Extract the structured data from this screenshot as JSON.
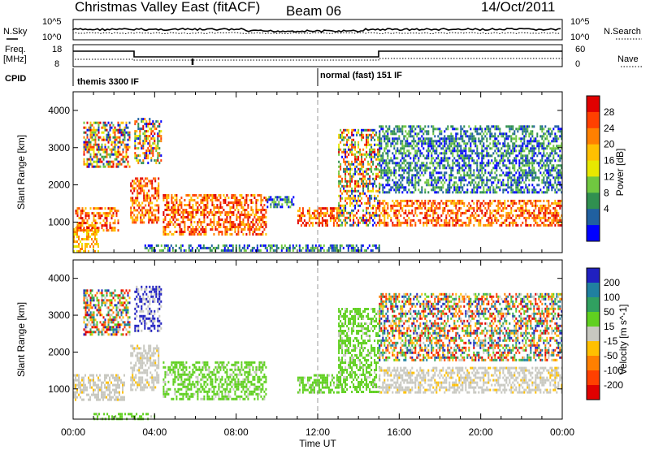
{
  "title": {
    "site": "Christmas Valley East (fitACF)",
    "beam": "Beam 06",
    "date": "14/Oct/2011"
  },
  "time_axis": {
    "label": "Time UT",
    "ticks": [
      "00:00",
      "04:00",
      "08:00",
      "12:00",
      "16:00",
      "20:00",
      "00:00"
    ]
  },
  "noise_panel": {
    "left_label": "N.Sky",
    "right_label": "N.Search",
    "scale_ticks": [
      "10^5",
      "10^0"
    ]
  },
  "freq_panel": {
    "left_label_1": "Freq.",
    "left_label_2": "[MHz]",
    "left_ticks": [
      "18",
      "8"
    ],
    "right_label": "Nave",
    "right_ticks": [
      "60",
      "0"
    ]
  },
  "cpid": {
    "label": "CPID",
    "modes": [
      {
        "name": "themis 3300 IF",
        "start_hour": 0
      },
      {
        "name": "normal (fast) 151 IF",
        "start_hour": 12
      }
    ]
  },
  "chart_data": [
    {
      "type": "heatmap",
      "name": "power",
      "ylabel": "Slant Range [km]",
      "yticks": [
        1000,
        2000,
        3000,
        4000
      ],
      "ylim": [
        180,
        4500
      ],
      "xlim": [
        0,
        24
      ],
      "colorbar": {
        "label": "Power [dB]",
        "ticks": [
          "28",
          "24",
          "20",
          "16",
          "12",
          "8",
          "4"
        ],
        "colors": [
          "#e00000",
          "#ff4000",
          "#ff8000",
          "#ffc000",
          "#e8e800",
          "#70c840",
          "#309050",
          "#2060a0",
          "#0000ff"
        ]
      },
      "regions": [
        {
          "x0": 0.0,
          "x1": 1.2,
          "y0": 200,
          "y1": 900,
          "level": "mid"
        },
        {
          "x0": 0.1,
          "x1": 2.2,
          "y0": 800,
          "y1": 1400,
          "level": "high"
        },
        {
          "x0": 0.5,
          "x1": 2.8,
          "y0": 2500,
          "y1": 3700,
          "level": "mixed"
        },
        {
          "x0": 2.8,
          "x1": 4.2,
          "y0": 1000,
          "y1": 2200,
          "level": "high"
        },
        {
          "x0": 3.0,
          "x1": 4.3,
          "y0": 2600,
          "y1": 3800,
          "level": "mixed"
        },
        {
          "x0": 4.4,
          "x1": 9.5,
          "y0": 700,
          "y1": 1750,
          "level": "high"
        },
        {
          "x0": 9.5,
          "x1": 10.8,
          "y0": 1400,
          "y1": 1700,
          "level": "low"
        },
        {
          "x0": 11.0,
          "x1": 13.0,
          "y0": 900,
          "y1": 1400,
          "level": "high"
        },
        {
          "x0": 13.0,
          "x1": 15.0,
          "y0": 900,
          "y1": 3500,
          "level": "mixed"
        },
        {
          "x0": 15.0,
          "x1": 24.0,
          "y0": 900,
          "y1": 1600,
          "level": "high"
        },
        {
          "x0": 15.0,
          "x1": 24.0,
          "y0": 1800,
          "y1": 3600,
          "level": "low"
        },
        {
          "x0": 3.5,
          "x1": 15.0,
          "y0": 250,
          "y1": 400,
          "level": "low"
        }
      ]
    },
    {
      "type": "heatmap",
      "name": "velocity",
      "ylabel": "Slant Range [km]",
      "yticks": [
        1000,
        2000,
        3000,
        4000
      ],
      "ylim": [
        180,
        4500
      ],
      "xlim": [
        0,
        24
      ],
      "colorbar": {
        "label": "Velocity [m s^-1]",
        "ticks": [
          "200",
          "100",
          "50",
          "15",
          "-15",
          "-50",
          "-100",
          "-200"
        ],
        "colors": [
          "#2020c0",
          "#2080a0",
          "#30a060",
          "#60d020",
          "#c8c8c0",
          "#ffc000",
          "#ff8000",
          "#ff4000",
          "#e00000"
        ]
      },
      "regions": [
        {
          "x0": 0.0,
          "x1": 2.5,
          "y0": 700,
          "y1": 1400,
          "level": "gray"
        },
        {
          "x0": 0.5,
          "x1": 2.8,
          "y0": 2500,
          "y1": 3700,
          "level": "mixed"
        },
        {
          "x0": 3.0,
          "x1": 4.3,
          "y0": 2600,
          "y1": 3800,
          "level": "blue"
        },
        {
          "x0": 2.8,
          "x1": 4.2,
          "y0": 1000,
          "y1": 2200,
          "level": "gray"
        },
        {
          "x0": 4.4,
          "x1": 9.5,
          "y0": 700,
          "y1": 1750,
          "level": "green"
        },
        {
          "x0": 11.0,
          "x1": 13.0,
          "y0": 900,
          "y1": 1400,
          "level": "green"
        },
        {
          "x0": 13.0,
          "x1": 15.0,
          "y0": 900,
          "y1": 3200,
          "level": "green"
        },
        {
          "x0": 15.0,
          "x1": 24.0,
          "y0": 900,
          "y1": 1600,
          "level": "gray"
        },
        {
          "x0": 15.0,
          "x1": 24.0,
          "y0": 1800,
          "y1": 3600,
          "level": "mixed"
        },
        {
          "x0": 1.0,
          "x1": 4.0,
          "y0": 200,
          "y1": 350,
          "level": "green"
        }
      ]
    }
  ]
}
